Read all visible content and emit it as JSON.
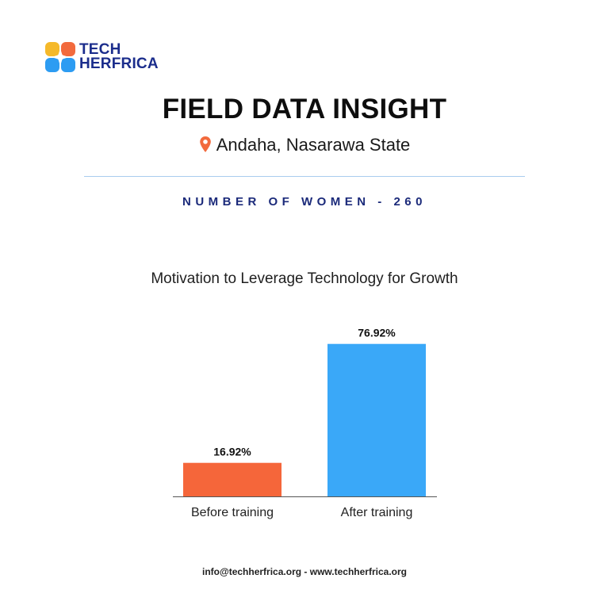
{
  "brand": {
    "line1": "TECH",
    "line2": "HERFRICA"
  },
  "header": {
    "title": "FIELD DATA INSIGHT",
    "location": "Andaha, Nasarawa State"
  },
  "subheading": "NUMBER OF WOMEN - 260",
  "chart_data": {
    "type": "bar",
    "title": "Motivation to Leverage Technology for Growth",
    "categories": [
      "Before training",
      "After training"
    ],
    "values": [
      16.92,
      76.92
    ],
    "value_labels": [
      "16.92%",
      "76.92%"
    ],
    "colors": [
      "#f5663a",
      "#3aa8f8"
    ],
    "ylim": [
      0,
      80
    ],
    "grid": false,
    "xlabel": "",
    "ylabel": ""
  },
  "footer": "info@techherfrica.org - www.techherfrica.org",
  "colors": {
    "brand_blue": "#1b2d8c",
    "pin_orange": "#f26a3d",
    "divider": "#a9cdee"
  }
}
